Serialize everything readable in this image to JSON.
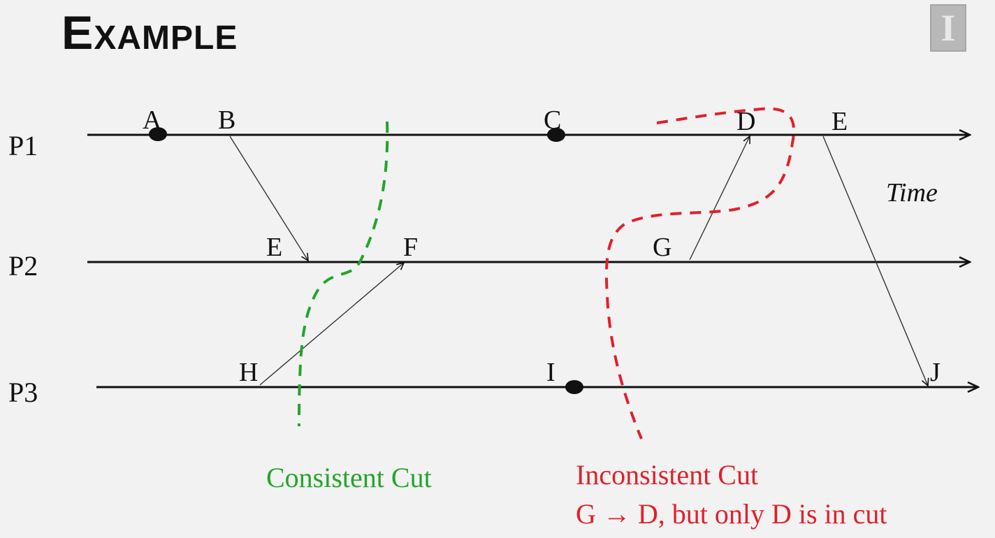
{
  "title": "Example",
  "processes": [
    {
      "id": "p1",
      "label": "P1"
    },
    {
      "id": "p2",
      "label": "P2"
    },
    {
      "id": "p3",
      "label": "P3"
    }
  ],
  "events": {
    "A": "A",
    "B": "B",
    "C": "C",
    "D": "D",
    "E1": "E",
    "E2": "E",
    "F": "F",
    "G": "G",
    "H": "H",
    "I": "I",
    "J": "J"
  },
  "time_label": "Time",
  "consistent_cut": {
    "label": "Consistent Cut",
    "color": "#22a52b"
  },
  "inconsistent_cut": {
    "label": "Inconsistent Cut",
    "note": "G → D, but only D is in cut",
    "color": "#e0202a"
  }
}
